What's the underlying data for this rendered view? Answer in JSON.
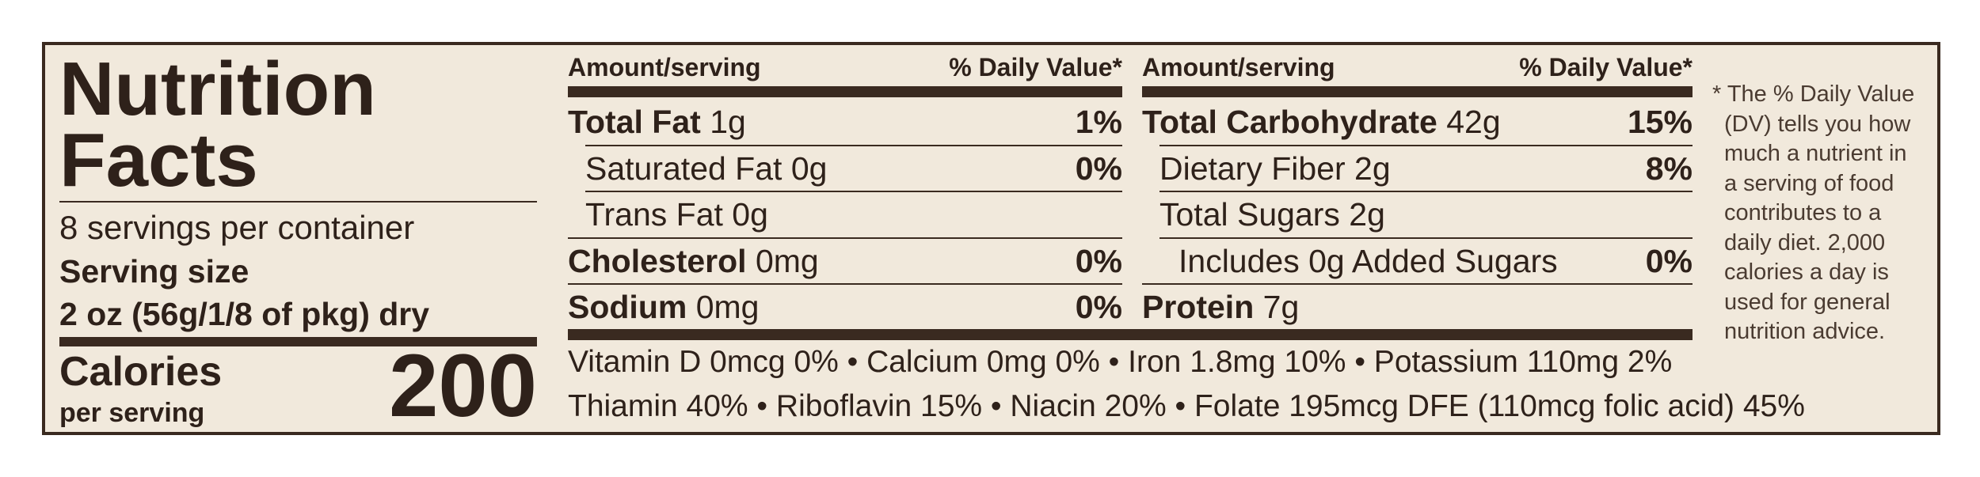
{
  "panel": {
    "title_line1": "Nutrition",
    "title_line2": "Facts",
    "servings_per_container": "8 servings per container",
    "serving_size_label": "Serving size",
    "serving_size_value": "2 oz (56g/1/8 of pkg) dry",
    "calories_label": "Calories",
    "per_serving": "per serving",
    "calories_value": "200"
  },
  "columns": {
    "header_amount": "Amount/serving",
    "header_dv": "% Daily Value*"
  },
  "left_rows": [
    {
      "name": "Total Fat",
      "amount": " 1g",
      "dv": "1%",
      "bold": true
    },
    {
      "name": "Saturated Fat 0g",
      "amount": "",
      "dv": "0%",
      "bold": false
    },
    {
      "name": "Trans Fat 0g",
      "amount": "",
      "dv": "",
      "bold": false
    },
    {
      "name": "Cholesterol",
      "amount": " 0mg",
      "dv": "0%",
      "bold": true
    },
    {
      "name": "Sodium",
      "amount": " 0mg",
      "dv": "0%",
      "bold": true
    }
  ],
  "right_rows": [
    {
      "name": "Total Carbohydrate",
      "amount": " 42g",
      "dv": "15%",
      "bold": true
    },
    {
      "name": "Dietary Fiber 2g",
      "amount": "",
      "dv": "8%",
      "bold": false
    },
    {
      "name": "Total Sugars 2g",
      "amount": "",
      "dv": "",
      "bold": false
    },
    {
      "name": "Includes 0g Added Sugars",
      "amount": "",
      "dv": "0%",
      "bold": false
    },
    {
      "name": "Protein",
      "amount": " 7g",
      "dv": "",
      "bold": true
    }
  ],
  "micronutrients": {
    "line1": "Vitamin D 0mcg 0% • Calcium 0mg 0% • Iron 1.8mg 10% • Potassium 110mg 2%",
    "line2": "Thiamin 40% • Riboflavin 15% • Niacin 20% • Folate 195mcg DFE (110mcg folic acid) 45%"
  },
  "footnote": [
    "* The % Daily Value",
    "(DV) tells you how",
    "much a nutrient in",
    "a serving of food",
    "contributes to a",
    "daily diet. 2,000",
    "calories a day is",
    "used for general",
    "nutrition advice."
  ],
  "colors": {
    "background": "#f1e9dc",
    "ink": "#2e211a",
    "border": "#3a2a20"
  }
}
